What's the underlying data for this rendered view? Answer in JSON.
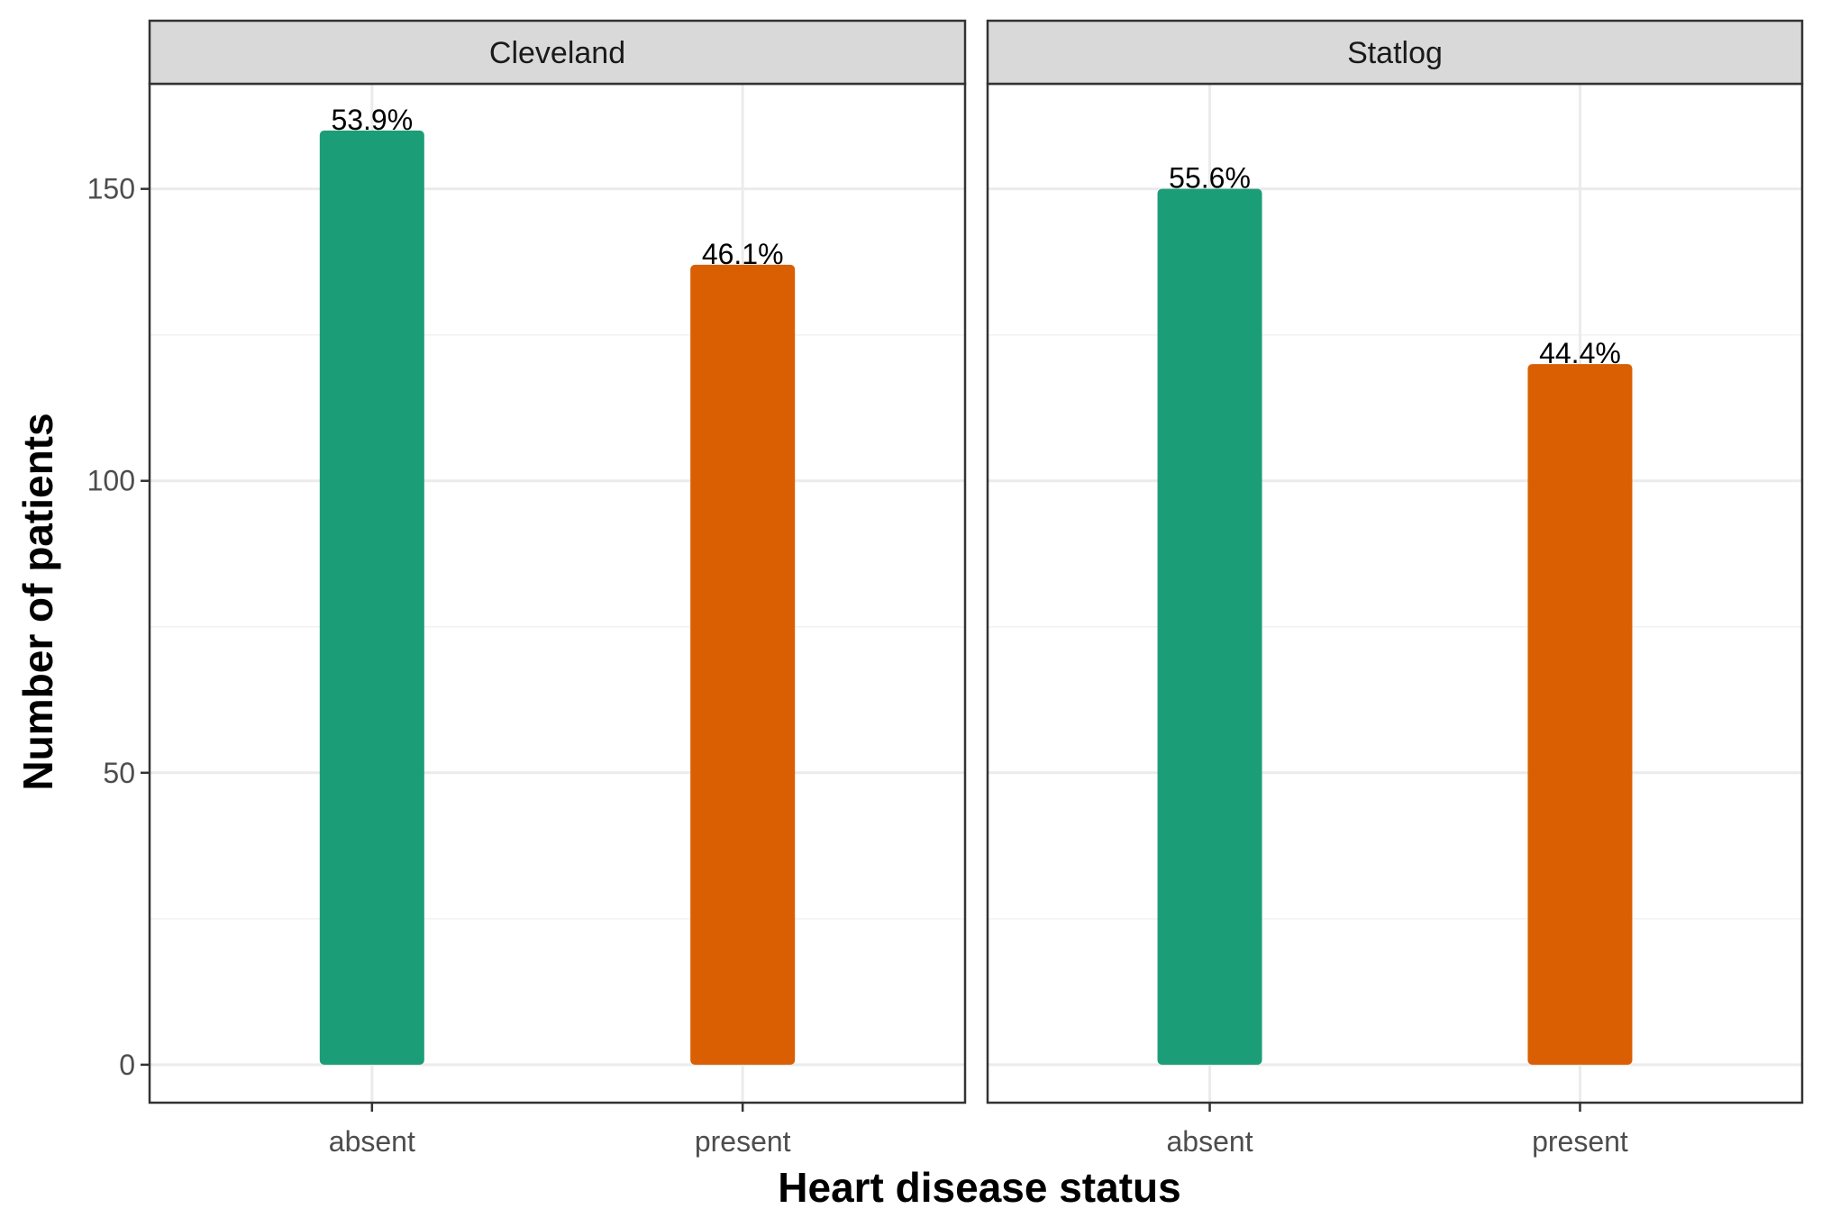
{
  "chart_data": {
    "type": "bar",
    "xlabel": "Heart disease status",
    "ylabel": "Number of patients",
    "ylim": [
      -6.5,
      168
    ],
    "yticks": [
      0,
      50,
      100,
      150
    ],
    "categories": [
      "absent",
      "present"
    ],
    "colors": {
      "absent": "#1b9e77",
      "present": "#d95f02"
    },
    "grid": true,
    "legend": "none",
    "panels": [
      {
        "name": "Cleveland",
        "values": [
          160,
          137
        ],
        "labels": [
          "53.9%",
          "46.1%"
        ]
      },
      {
        "name": "Statlog",
        "values": [
          150,
          120
        ],
        "labels": [
          "55.6%",
          "44.4%"
        ]
      }
    ]
  }
}
